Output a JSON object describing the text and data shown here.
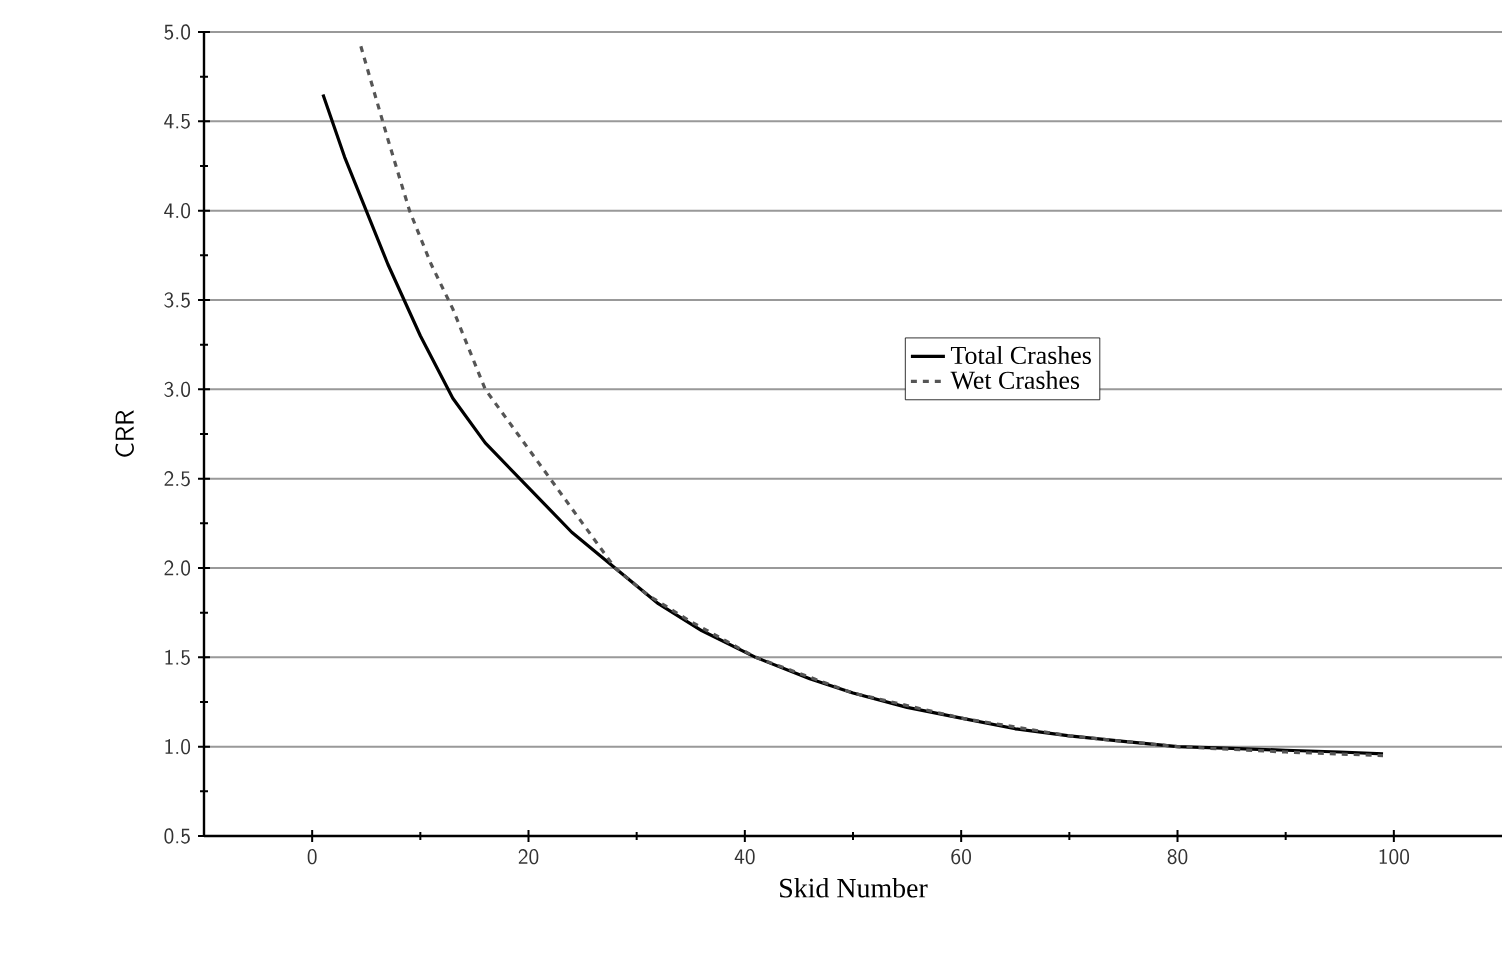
{
  "chart_data": {
    "type": "line",
    "xlabel": "Skid Number",
    "ylabel": "CRR",
    "xlim": [
      -10,
      110
    ],
    "xticks": [
      0,
      20,
      40,
      60,
      80,
      100
    ],
    "ylim": [
      0.5,
      5.0
    ],
    "yticks": [
      0.5,
      {
        "value": 1,
        "label": "1.0"
      },
      1.5,
      {
        "value": 2,
        "label": "2.0"
      },
      2.5,
      {
        "value": 3,
        "label": "3.0"
      },
      3.5,
      {
        "value": 4,
        "label": "4.0"
      },
      4.5,
      {
        "value": 5,
        "label": "5.0"
      }
    ],
    "grid": "y",
    "legend": "right",
    "marker": "none",
    "series": [
      {
        "name": "Total Crashes",
        "color": "#000000",
        "line_style": "solid",
        "x": [
          1,
          3,
          5,
          7,
          10,
          13,
          16,
          20,
          24,
          28,
          32,
          36,
          41,
          46,
          50,
          55,
          60,
          65,
          70,
          75,
          80,
          85,
          90,
          95,
          99
        ],
        "values": [
          4.65,
          4.3,
          4.0,
          3.7,
          3.3,
          2.95,
          2.7,
          2.45,
          2.2,
          2.0,
          1.8,
          1.65,
          1.5,
          1.38,
          1.3,
          1.22,
          1.16,
          1.1,
          1.06,
          1.03,
          1.0,
          0.99,
          0.98,
          0.97,
          0.96
        ]
      },
      {
        "name": "Wet Crashes",
        "color": "#555555",
        "line_style": "dashed",
        "x": [
          4.5,
          7,
          9,
          11,
          13,
          16,
          19,
          22,
          25,
          28,
          31,
          35,
          41,
          50,
          60,
          70,
          80,
          90,
          99
        ],
        "values": [
          4.92,
          4.4,
          4.0,
          3.7,
          3.45,
          3.0,
          2.75,
          2.5,
          2.25,
          2.0,
          1.85,
          1.7,
          1.5,
          1.3,
          1.16,
          1.06,
          1.0,
          0.97,
          0.95
        ]
      }
    ]
  }
}
